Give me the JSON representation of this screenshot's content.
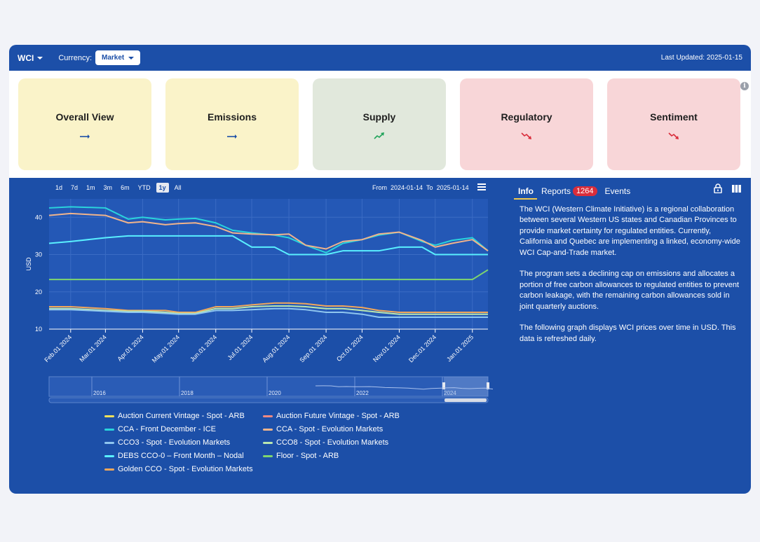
{
  "topbar": {
    "market": "WCI",
    "currency_label": "Currency:",
    "currency_value": "Market",
    "last_updated": "Last Updated: 2025-01-15"
  },
  "cards": [
    {
      "title": "Overall View",
      "trend": "flat",
      "bg": "#faf3c9",
      "arrow_color": "#1c4fa8"
    },
    {
      "title": "Emissions",
      "trend": "flat",
      "bg": "#faf3c9",
      "arrow_color": "#1c4fa8"
    },
    {
      "title": "Supply",
      "trend": "up",
      "bg": "#e1e8dc",
      "arrow_color": "#21a35a"
    },
    {
      "title": "Regulatory",
      "trend": "down",
      "bg": "#f8d6d8",
      "arrow_color": "#d92d3b"
    },
    {
      "title": "Sentiment",
      "trend": "down",
      "bg": "#f8d6d8",
      "arrow_color": "#d92d3b"
    }
  ],
  "info_icon": "info-icon",
  "chart_controls": {
    "ranges": [
      "1d",
      "7d",
      "1m",
      "3m",
      "6m",
      "YTD",
      "1y",
      "All"
    ],
    "active_range": "1y",
    "from_label": "From",
    "from_value": "2024-01-14",
    "to_label": "To",
    "to_value": "2025-01-14"
  },
  "chart_data": {
    "type": "line",
    "ylabel": "USD",
    "ylim": [
      10,
      50
    ],
    "yticks": [
      10,
      20,
      30,
      40
    ],
    "x_tick_labels": [
      "Feb.01 2024",
      "Mar.01 2024",
      "Apr.01 2024",
      "May.01 2024",
      "Jun.01 2024",
      "Jul.01 2024",
      "Aug.01 2024",
      "Sep.01 2024",
      "Oct.01 2024",
      "Nov.01 2024",
      "Dec.01 2024",
      "Jan.01 2025"
    ],
    "x_dates": [
      "2024-01-14",
      "2024-02-01",
      "2024-03-01",
      "2024-03-20",
      "2024-04-01",
      "2024-04-20",
      "2024-05-01",
      "2024-05-15",
      "2024-06-01",
      "2024-06-15",
      "2024-07-01",
      "2024-07-20",
      "2024-08-01",
      "2024-08-15",
      "2024-09-01",
      "2024-09-15",
      "2024-10-01",
      "2024-10-15",
      "2024-11-01",
      "2024-11-20",
      "2024-12-01",
      "2024-12-15",
      "2025-01-01",
      "2025-01-14"
    ],
    "grid": true,
    "series": [
      {
        "name": "CCA - Front December - ICE",
        "color": "#2ad4dc",
        "values": [
          42.5,
          42.8,
          42.5,
          39.5,
          40.0,
          39.3,
          39.5,
          39.7,
          38.5,
          36.5,
          35.8,
          35.2,
          34.5,
          32.5,
          30.5,
          33.0,
          34.0,
          35.2,
          36.0,
          33.5,
          32.5,
          33.8,
          34.5,
          31.0
        ]
      },
      {
        "name": "CCA - Spot - Evolution Markets",
        "color": "#f0b48c",
        "values": [
          40.5,
          41.0,
          40.5,
          38.5,
          38.8,
          38.0,
          38.3,
          38.5,
          37.5,
          35.8,
          35.5,
          35.3,
          35.5,
          32.5,
          31.5,
          33.5,
          34.0,
          35.5,
          36.0,
          33.8,
          32.0,
          33.0,
          34.0,
          31.0
        ]
      },
      {
        "name": "DEBS CCO-0 – Front Month – Nodal",
        "color": "#5af0ff",
        "values": [
          33.0,
          33.5,
          34.5,
          35.0,
          35.0,
          35.0,
          35.0,
          35.0,
          35.0,
          35.0,
          32.0,
          32.0,
          30.0,
          30.0,
          30.0,
          31.0,
          31.0,
          31.0,
          32.0,
          32.0,
          30.0,
          30.0,
          30.0,
          30.0
        ]
      },
      {
        "name": "Floor - Spot - ARB",
        "color": "#7fd66e",
        "values": [
          23.3,
          23.3,
          23.3,
          23.3,
          23.3,
          23.3,
          23.3,
          23.3,
          23.3,
          23.3,
          23.3,
          23.3,
          23.3,
          23.3,
          23.3,
          23.3,
          23.3,
          23.3,
          23.3,
          23.3,
          23.3,
          23.3,
          23.3,
          25.9
        ]
      },
      {
        "name": "Golden CCO - Spot - Evolution Markets",
        "color": "#f2a75a",
        "values": [
          16.0,
          16.0,
          15.5,
          15.0,
          15.0,
          15.0,
          14.5,
          14.5,
          16.0,
          16.0,
          16.5,
          17.0,
          17.0,
          16.8,
          16.2,
          16.2,
          15.8,
          15.0,
          14.5,
          14.5,
          14.5,
          14.5,
          14.5,
          14.5
        ]
      },
      {
        "name": "CCO8 - Spot - Evolution Markets",
        "color": "#b9e7b0",
        "values": [
          15.5,
          15.5,
          15.0,
          14.8,
          14.8,
          14.5,
          14.2,
          14.2,
          15.5,
          15.5,
          16.0,
          16.2,
          16.2,
          16.0,
          15.5,
          15.5,
          15.0,
          14.5,
          14.0,
          14.0,
          14.0,
          14.0,
          14.0,
          14.0
        ]
      },
      {
        "name": "CCO3 - Spot - Evolution Markets",
        "color": "#8fc6ef",
        "values": [
          15.2,
          15.2,
          14.8,
          14.5,
          14.5,
          14.2,
          14.0,
          14.0,
          15.0,
          15.0,
          15.2,
          15.5,
          15.5,
          15.2,
          14.5,
          14.5,
          14.0,
          13.2,
          13.2,
          13.2,
          13.2,
          13.2,
          13.2,
          13.2
        ]
      }
    ],
    "navigator_labels": [
      "2016",
      "2018",
      "2020",
      "2022",
      "2024"
    ]
  },
  "legend": [
    {
      "name": "Auction Current Vintage - Spot - ARB",
      "color": "#f2e15a"
    },
    {
      "name": "Auction Future Vintage - Spot - ARB",
      "color": "#f28a82"
    },
    {
      "name": "CCA - Front December - ICE",
      "color": "#2ad4dc"
    },
    {
      "name": "CCA - Spot - Evolution Markets",
      "color": "#f0b48c"
    },
    {
      "name": "CCO3 - Spot - Evolution Markets",
      "color": "#8fc6ef"
    },
    {
      "name": "CCO8 - Spot - Evolution Markets",
      "color": "#b9e7b0"
    },
    {
      "name": "DEBS CCO-0 – Front Month – Nodal",
      "color": "#5af0ff"
    },
    {
      "name": "Floor - Spot - ARB",
      "color": "#7fd66e"
    },
    {
      "name": "Golden CCO - Spot - Evolution Markets",
      "color": "#f2a75a"
    }
  ],
  "right_panel": {
    "tabs": [
      "Info",
      "Reports",
      "Events"
    ],
    "reports_count": "1264",
    "paragraphs": [
      "The WCI (Western Climate Initiative) is a regional collaboration between several Western US states and Canadian Provinces to provide market certainty for regulated entities. Currently, California and Quebec are implementing a linked, economy-wide WCI Cap-and-Trade market.",
      "The program sets a declining cap on emissions and allocates a portion of free carbon allowances to regulated entities to prevent carbon leakage, with the remaining carbon allowances sold in joint quarterly auctions.",
      "The following graph displays WCI prices over time in USD. This data is refreshed daily."
    ]
  },
  "colors": {
    "primary": "#1c4fa8",
    "badge": "#d92d3b",
    "tab_underline": "#f2c94c"
  }
}
